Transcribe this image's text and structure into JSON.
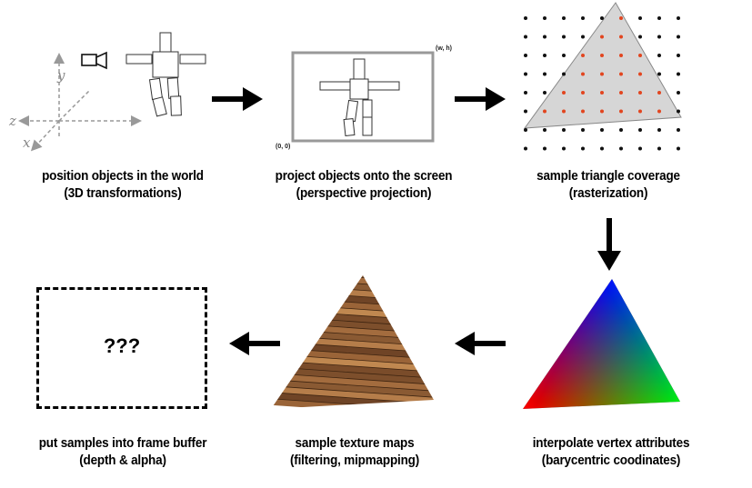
{
  "stages": [
    {
      "line1": "position objects in the world",
      "line2": "(3D transformations)"
    },
    {
      "line1": "project objects onto the screen",
      "line2": "(perspective projection)"
    },
    {
      "line1": "sample triangle coverage",
      "line2": "(rasterization)"
    },
    {
      "line1": "interpolate vertex attributes",
      "line2": "(barycentric coodinates)"
    },
    {
      "line1": "sample texture maps",
      "line2": "(filtering, mipmapping)"
    },
    {
      "line1": "put samples into frame buffer",
      "line2": "(depth & alpha)"
    }
  ],
  "axes": {
    "x": "x",
    "y": "y",
    "z": "z"
  },
  "screen": {
    "corner_top_right": "(w, h)",
    "corner_bottom_left": "(0, 0)"
  },
  "framebuffer": {
    "placeholder": "???"
  },
  "colors": {
    "triangle_fill": "#d6d6d6",
    "sample_in": "#e2451f",
    "sample_out": "#111111",
    "vertex_red": "#ff0000",
    "vertex_green": "#00ee00",
    "vertex_blue": "#0000ff",
    "wood": "#8a5a33"
  }
}
